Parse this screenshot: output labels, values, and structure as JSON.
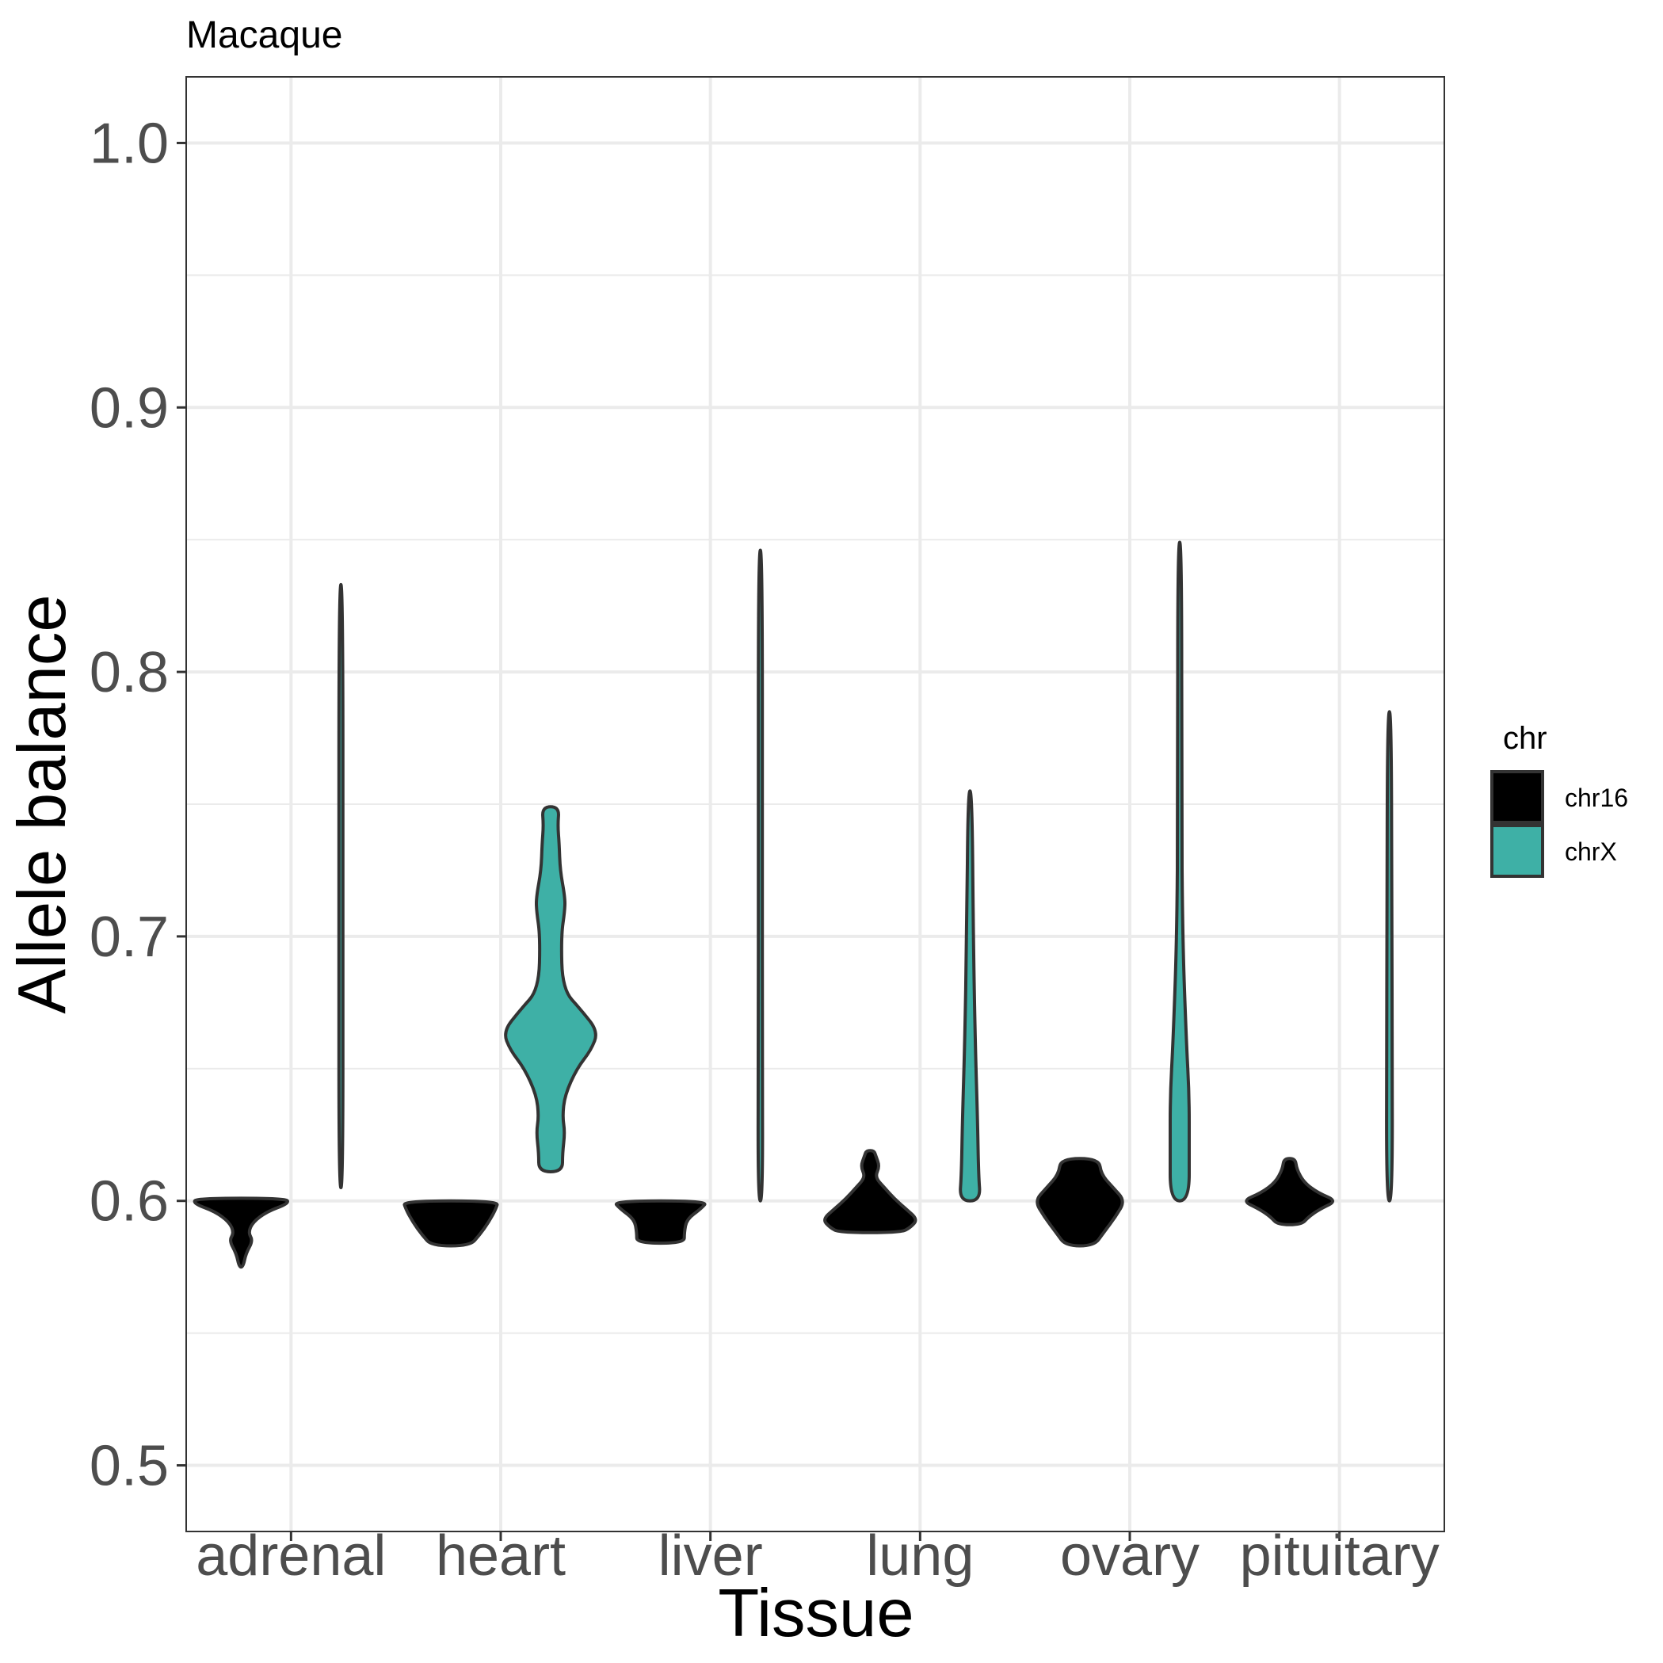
{
  "chart_data": {
    "type": "violin",
    "title": "Macaque",
    "xlabel": "Tissue",
    "ylabel": "Allele balance",
    "ylim": [
      0.475,
      1.025
    ],
    "yticks": [
      "0.5",
      "0.6",
      "0.7",
      "0.8",
      "0.9",
      "1.0"
    ],
    "categories": [
      "adrenal",
      "heart",
      "liver",
      "lung",
      "ovary",
      "pituitary"
    ],
    "legend": {
      "title": "chr",
      "position": "right",
      "entries": [
        {
          "name": "chr16",
          "color": "#000000"
        },
        {
          "name": "chrX",
          "color": "#3eb0a6"
        }
      ]
    },
    "grid": true,
    "series": [
      {
        "name": "chr16",
        "color": "#000000",
        "violins": [
          {
            "category": "adrenal",
            "ymin": 0.575,
            "ymax": 0.601,
            "profile": [
              [
                0.575,
                0.02
              ],
              [
                0.58,
                0.1
              ],
              [
                0.585,
                0.25
              ],
              [
                0.588,
                0.15
              ],
              [
                0.592,
                0.25
              ],
              [
                0.596,
                0.55
              ],
              [
                0.599,
                1.0
              ],
              [
                0.601,
                0.95
              ]
            ]
          },
          {
            "category": "heart",
            "ymin": 0.583,
            "ymax": 0.6,
            "profile": [
              [
                0.583,
                0.4
              ],
              [
                0.587,
                0.6
              ],
              [
                0.592,
                0.8
              ],
              [
                0.597,
                0.95
              ],
              [
                0.6,
                1.0
              ]
            ]
          },
          {
            "category": "liver",
            "ymin": 0.584,
            "ymax": 0.6,
            "profile": [
              [
                0.584,
                0.5
              ],
              [
                0.588,
                0.5
              ],
              [
                0.593,
                0.55
              ],
              [
                0.597,
                0.85
              ],
              [
                0.6,
                1.0
              ]
            ]
          },
          {
            "category": "lung",
            "ymin": 0.588,
            "ymax": 0.619,
            "profile": [
              [
                0.588,
                0.65
              ],
              [
                0.59,
                0.85
              ],
              [
                0.593,
                1.0
              ],
              [
                0.597,
                0.75
              ],
              [
                0.601,
                0.5
              ],
              [
                0.605,
                0.3
              ],
              [
                0.609,
                0.1
              ],
              [
                0.613,
                0.2
              ],
              [
                0.617,
                0.12
              ],
              [
                0.619,
                0.08
              ]
            ]
          },
          {
            "category": "ovary",
            "ymin": 0.583,
            "ymax": 0.616,
            "profile": [
              [
                0.583,
                0.3
              ],
              [
                0.588,
                0.5
              ],
              [
                0.594,
                0.75
              ],
              [
                0.6,
                0.95
              ],
              [
                0.605,
                0.7
              ],
              [
                0.61,
                0.45
              ],
              [
                0.616,
                0.4
              ]
            ]
          },
          {
            "category": "pituitary",
            "ymin": 0.591,
            "ymax": 0.616,
            "profile": [
              [
                0.591,
                0.25
              ],
              [
                0.594,
                0.4
              ],
              [
                0.597,
                0.65
              ],
              [
                0.6,
                1.0
              ],
              [
                0.603,
                0.6
              ],
              [
                0.607,
                0.3
              ],
              [
                0.612,
                0.15
              ],
              [
                0.616,
                0.12
              ]
            ]
          }
        ]
      },
      {
        "name": "chrX",
        "color": "#3eb0a6",
        "violins": [
          {
            "category": "adrenal",
            "ymin": 0.605,
            "ymax": 0.833,
            "profile": [
              [
                0.605,
                0.03
              ],
              [
                0.7,
                0.03
              ],
              [
                0.833,
                0.03
              ]
            ]
          },
          {
            "category": "heart",
            "ymin": 0.611,
            "ymax": 0.749,
            "profile": [
              [
                0.611,
                0.25
              ],
              [
                0.618,
                0.25
              ],
              [
                0.626,
                0.3
              ],
              [
                0.632,
                0.25
              ],
              [
                0.64,
                0.3
              ],
              [
                0.65,
                0.55
              ],
              [
                0.657,
                0.85
              ],
              [
                0.664,
                1.0
              ],
              [
                0.672,
                0.65
              ],
              [
                0.68,
                0.25
              ],
              [
                0.7,
                0.22
              ],
              [
                0.71,
                0.3
              ],
              [
                0.715,
                0.3
              ],
              [
                0.725,
                0.2
              ],
              [
                0.735,
                0.18
              ],
              [
                0.742,
                0.15
              ],
              [
                0.749,
                0.18
              ]
            ]
          },
          {
            "category": "liver",
            "ymin": 0.6,
            "ymax": 0.846,
            "profile": [
              [
                0.6,
                0.05
              ],
              [
                0.66,
                0.04
              ],
              [
                0.73,
                0.04
              ],
              [
                0.846,
                0.03
              ]
            ]
          },
          {
            "category": "lung",
            "ymin": 0.6,
            "ymax": 0.755,
            "profile": [
              [
                0.6,
                0.22
              ],
              [
                0.61,
                0.18
              ],
              [
                0.63,
                0.16
              ],
              [
                0.66,
                0.11
              ],
              [
                0.7,
                0.07
              ],
              [
                0.755,
                0.04
              ]
            ]
          },
          {
            "category": "ovary",
            "ymin": 0.6,
            "ymax": 0.849,
            "profile": [
              [
                0.6,
                0.2
              ],
              [
                0.62,
                0.2
              ],
              [
                0.64,
                0.2
              ],
              [
                0.66,
                0.14
              ],
              [
                0.7,
                0.06
              ],
              [
                0.75,
                0.04
              ],
              [
                0.849,
                0.03
              ]
            ]
          },
          {
            "category": "pituitary",
            "ymin": 0.6,
            "ymax": 0.785,
            "profile": [
              [
                0.6,
                0.06
              ],
              [
                0.66,
                0.06
              ],
              [
                0.7,
                0.05
              ],
              [
                0.785,
                0.03
              ]
            ]
          }
        ]
      }
    ]
  }
}
